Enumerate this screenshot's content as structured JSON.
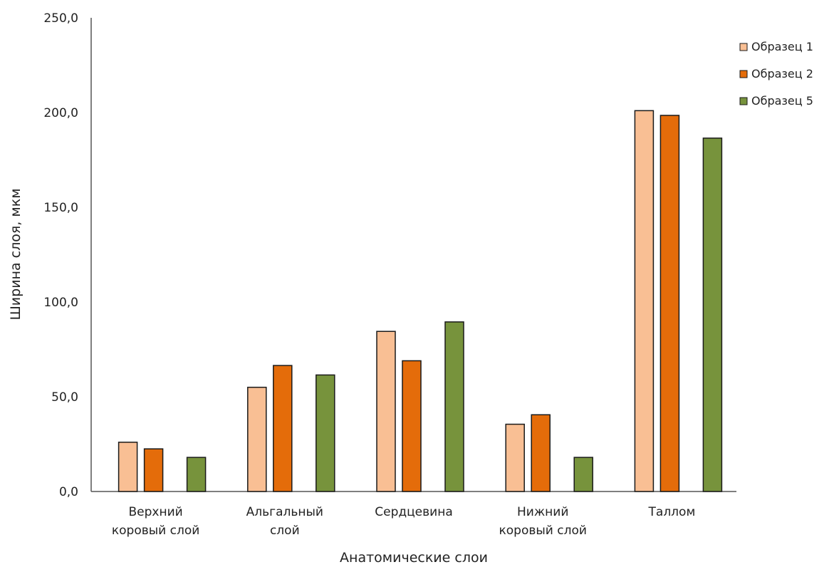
{
  "chart_data": {
    "type": "bar",
    "title": "",
    "xlabel": "Анатомические слои",
    "ylabel": "Ширина слоя, мкм",
    "ylim": [
      0,
      250
    ],
    "yticks": [
      "0,0",
      "50,0",
      "100,0",
      "150,0",
      "200,0",
      "250,0"
    ],
    "ytick_values": [
      0,
      50,
      100,
      150,
      200,
      250
    ],
    "grid": false,
    "legend_position": "top-right",
    "categories": [
      [
        "Верхний",
        "коровый  слой"
      ],
      [
        "Альгальный",
        "слой"
      ],
      [
        "Сердцевина"
      ],
      [
        "Нижний",
        "коровый  слой"
      ],
      [
        "Таллом"
      ]
    ],
    "series": [
      {
        "name": "Образец 1",
        "color": "#f9bf94",
        "values": [
          26,
          55,
          84.5,
          35.5,
          201
        ]
      },
      {
        "name": "Образец 2",
        "color": "#e46c0a",
        "values": [
          22.5,
          66.5,
          69,
          40.5,
          198.5
        ]
      },
      {
        "name": "Образец 5",
        "color": "#77933c",
        "values": [
          18,
          61.5,
          89.5,
          18,
          186.5
        ]
      }
    ]
  }
}
